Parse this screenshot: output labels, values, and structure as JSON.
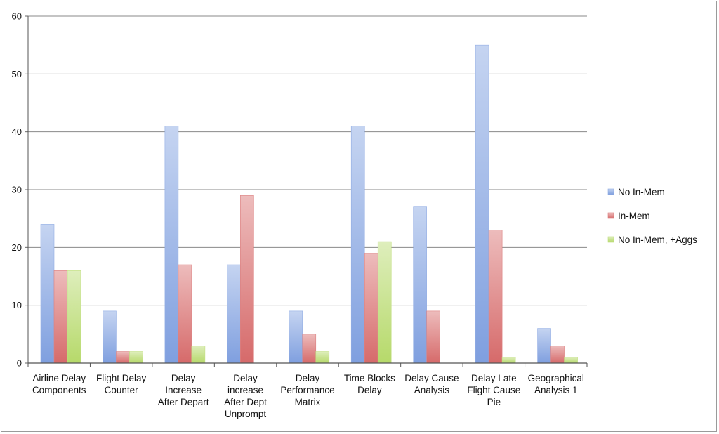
{
  "chart_data": {
    "type": "bar",
    "categories": [
      [
        "Airline Delay",
        "Components"
      ],
      [
        "Flight Delay",
        "Counter"
      ],
      [
        "Delay",
        "Increase",
        "After Depart"
      ],
      [
        "Delay",
        "increase",
        "After Dept",
        "Unprompt"
      ],
      [
        "Delay",
        "Performance",
        "Matrix"
      ],
      [
        "Time Blocks",
        "Delay"
      ],
      [
        "Delay Cause",
        "Analysis"
      ],
      [
        "Delay Late",
        "Flight Cause",
        "Pie"
      ],
      [
        "Geographical",
        "Analysis 1"
      ]
    ],
    "series": [
      {
        "name": "No In-Mem",
        "color": "#7f9fdf",
        "values": [
          24,
          9,
          41,
          17,
          9,
          41,
          27,
          55,
          6
        ]
      },
      {
        "name": "In-Mem",
        "color": "#d66a6a",
        "values": [
          16,
          2,
          17,
          29,
          5,
          19,
          9,
          23,
          3
        ]
      },
      {
        "name": "No In-Mem, +Aggs",
        "color": "#b6d96a",
        "values": [
          16,
          2,
          3,
          0,
          2,
          21,
          0,
          1,
          1
        ]
      }
    ],
    "title": "",
    "xlabel": "",
    "ylabel": "",
    "ylim": [
      0,
      60
    ],
    "yticks": [
      0,
      10,
      20,
      30,
      40,
      50,
      60
    ],
    "grid": true,
    "legend_position": "right"
  }
}
